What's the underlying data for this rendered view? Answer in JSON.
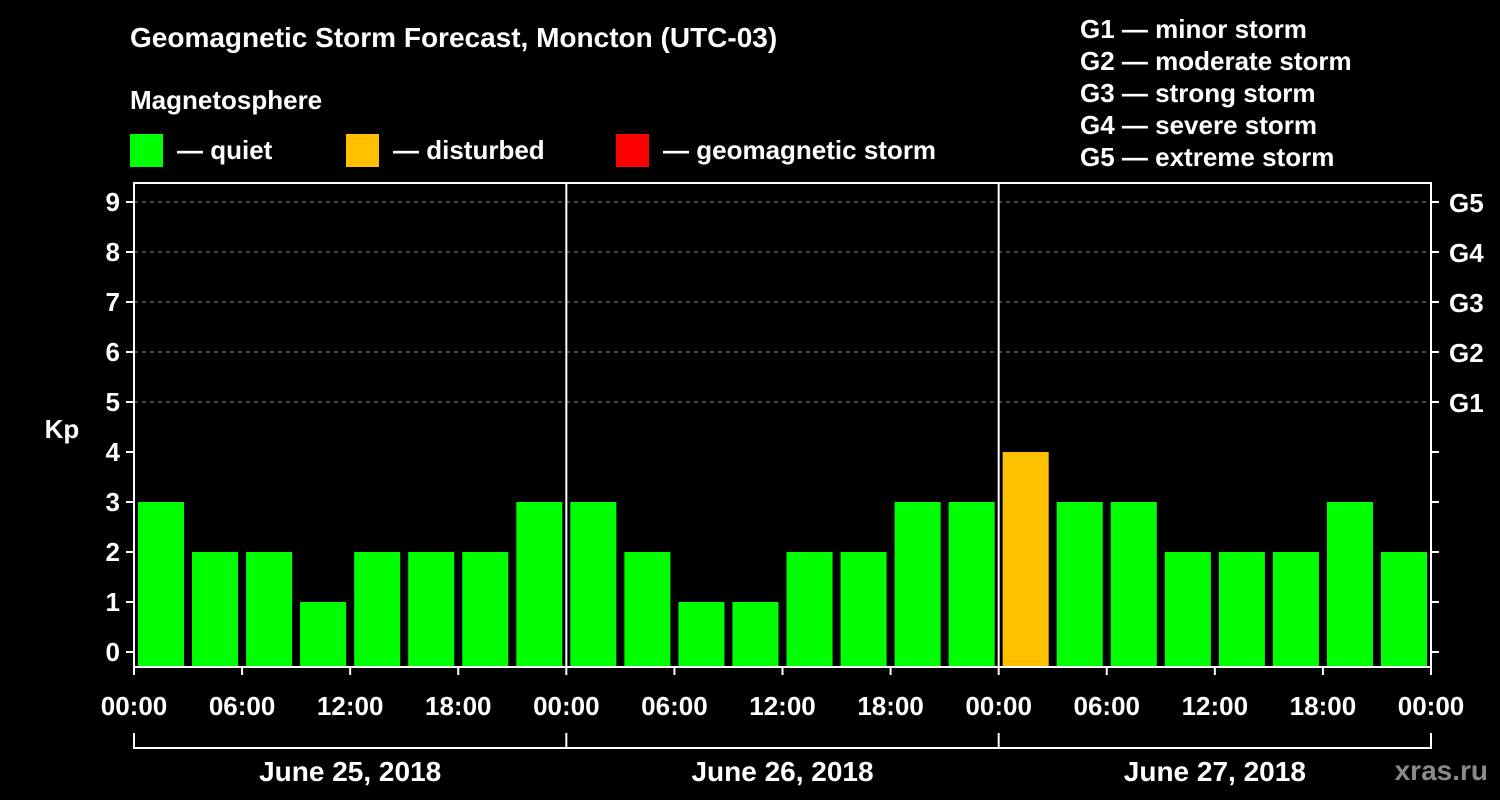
{
  "title": "Geomagnetic Storm Forecast, Moncton (UTC-03)",
  "subtitle": "Magnetosphere",
  "legend": [
    {
      "label": "— quiet",
      "color": "#00ff00"
    },
    {
      "label": "— disturbed",
      "color": "#ffc000"
    },
    {
      "label": "— geomagnetic storm",
      "color": "#ff0000"
    }
  ],
  "storm_scale": [
    "G1 — minor storm",
    "G2 — moderate storm",
    "G3 — strong storm",
    "G4 — severe storm",
    "G5 — extreme storm"
  ],
  "credit": "xras.ru",
  "chart_data": {
    "type": "bar",
    "title": "Geomagnetic Storm Forecast, Moncton (UTC-03)",
    "ylabel": "Kp",
    "ylim": [
      0,
      9
    ],
    "yticks": [
      0,
      1,
      2,
      3,
      4,
      5,
      6,
      7,
      8,
      9
    ],
    "right_ticks": [
      {
        "value": 5,
        "label": "G1"
      },
      {
        "value": 6,
        "label": "G2"
      },
      {
        "value": 7,
        "label": "G3"
      },
      {
        "value": 8,
        "label": "G4"
      },
      {
        "value": 9,
        "label": "G5"
      }
    ],
    "x_tick_labels": [
      "00:00",
      "06:00",
      "12:00",
      "18:00",
      "00:00",
      "06:00",
      "12:00",
      "18:00",
      "00:00",
      "06:00",
      "12:00",
      "18:00",
      "00:00"
    ],
    "days": [
      "June 25, 2018",
      "June 26, 2018",
      "June 27, 2018"
    ],
    "interval_hours": 3,
    "values": [
      3,
      2,
      2,
      1,
      2,
      2,
      2,
      3,
      3,
      2,
      1,
      1,
      2,
      2,
      3,
      3,
      4,
      3,
      3,
      2,
      2,
      2,
      3,
      2
    ],
    "status": [
      "quiet",
      "quiet",
      "quiet",
      "quiet",
      "quiet",
      "quiet",
      "quiet",
      "quiet",
      "quiet",
      "quiet",
      "quiet",
      "quiet",
      "quiet",
      "quiet",
      "quiet",
      "quiet",
      "disturbed",
      "quiet",
      "quiet",
      "quiet",
      "quiet",
      "quiet",
      "quiet",
      "quiet"
    ],
    "status_colors": {
      "quiet": "#00ff00",
      "disturbed": "#ffc000",
      "storm": "#ff0000"
    },
    "grid": true
  }
}
